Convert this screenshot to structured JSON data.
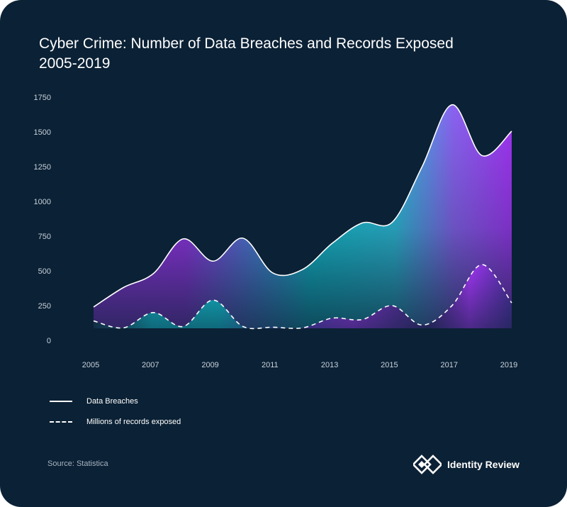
{
  "title_line1": "Cyber Crime: Number of Data Breaches and Records Exposed",
  "title_line2": "2005-2019",
  "legend": {
    "breaches": "Data Breaches",
    "records": "Millions of records exposed"
  },
  "source": "Source: Statistica",
  "brand": "Identity Review",
  "colors": {
    "background": "#0b2135",
    "purple": "#a234f4",
    "cyan": "#12c9d6",
    "line": "#ffffff"
  },
  "chart_data": {
    "type": "area",
    "x": [
      2005,
      2006,
      2007,
      2008,
      2009,
      2010,
      2011,
      2012,
      2013,
      2014,
      2015,
      2016,
      2017,
      2018,
      2019
    ],
    "xticks": [
      "2005",
      "2007",
      "2009",
      "2011",
      "2013",
      "2015",
      "2017",
      "2019"
    ],
    "yticks": [
      "0",
      "250",
      "500",
      "750",
      "1000",
      "1250",
      "1500",
      "1750"
    ],
    "ylim": [
      0,
      1750
    ],
    "grid": false,
    "legend_position": "bottom-left",
    "series": [
      {
        "name": "Data Breaches",
        "style": "solid",
        "values": [
          240,
          380,
          480,
          730,
          570,
          735,
          485,
          510,
          700,
          845,
          850,
          1250,
          1695,
          1330,
          1505
        ]
      },
      {
        "name": "Millions of records exposed",
        "style": "dashed",
        "values": [
          140,
          90,
          200,
          100,
          290,
          100,
          95,
          90,
          160,
          150,
          250,
          110,
          250,
          545,
          270
        ]
      }
    ]
  }
}
